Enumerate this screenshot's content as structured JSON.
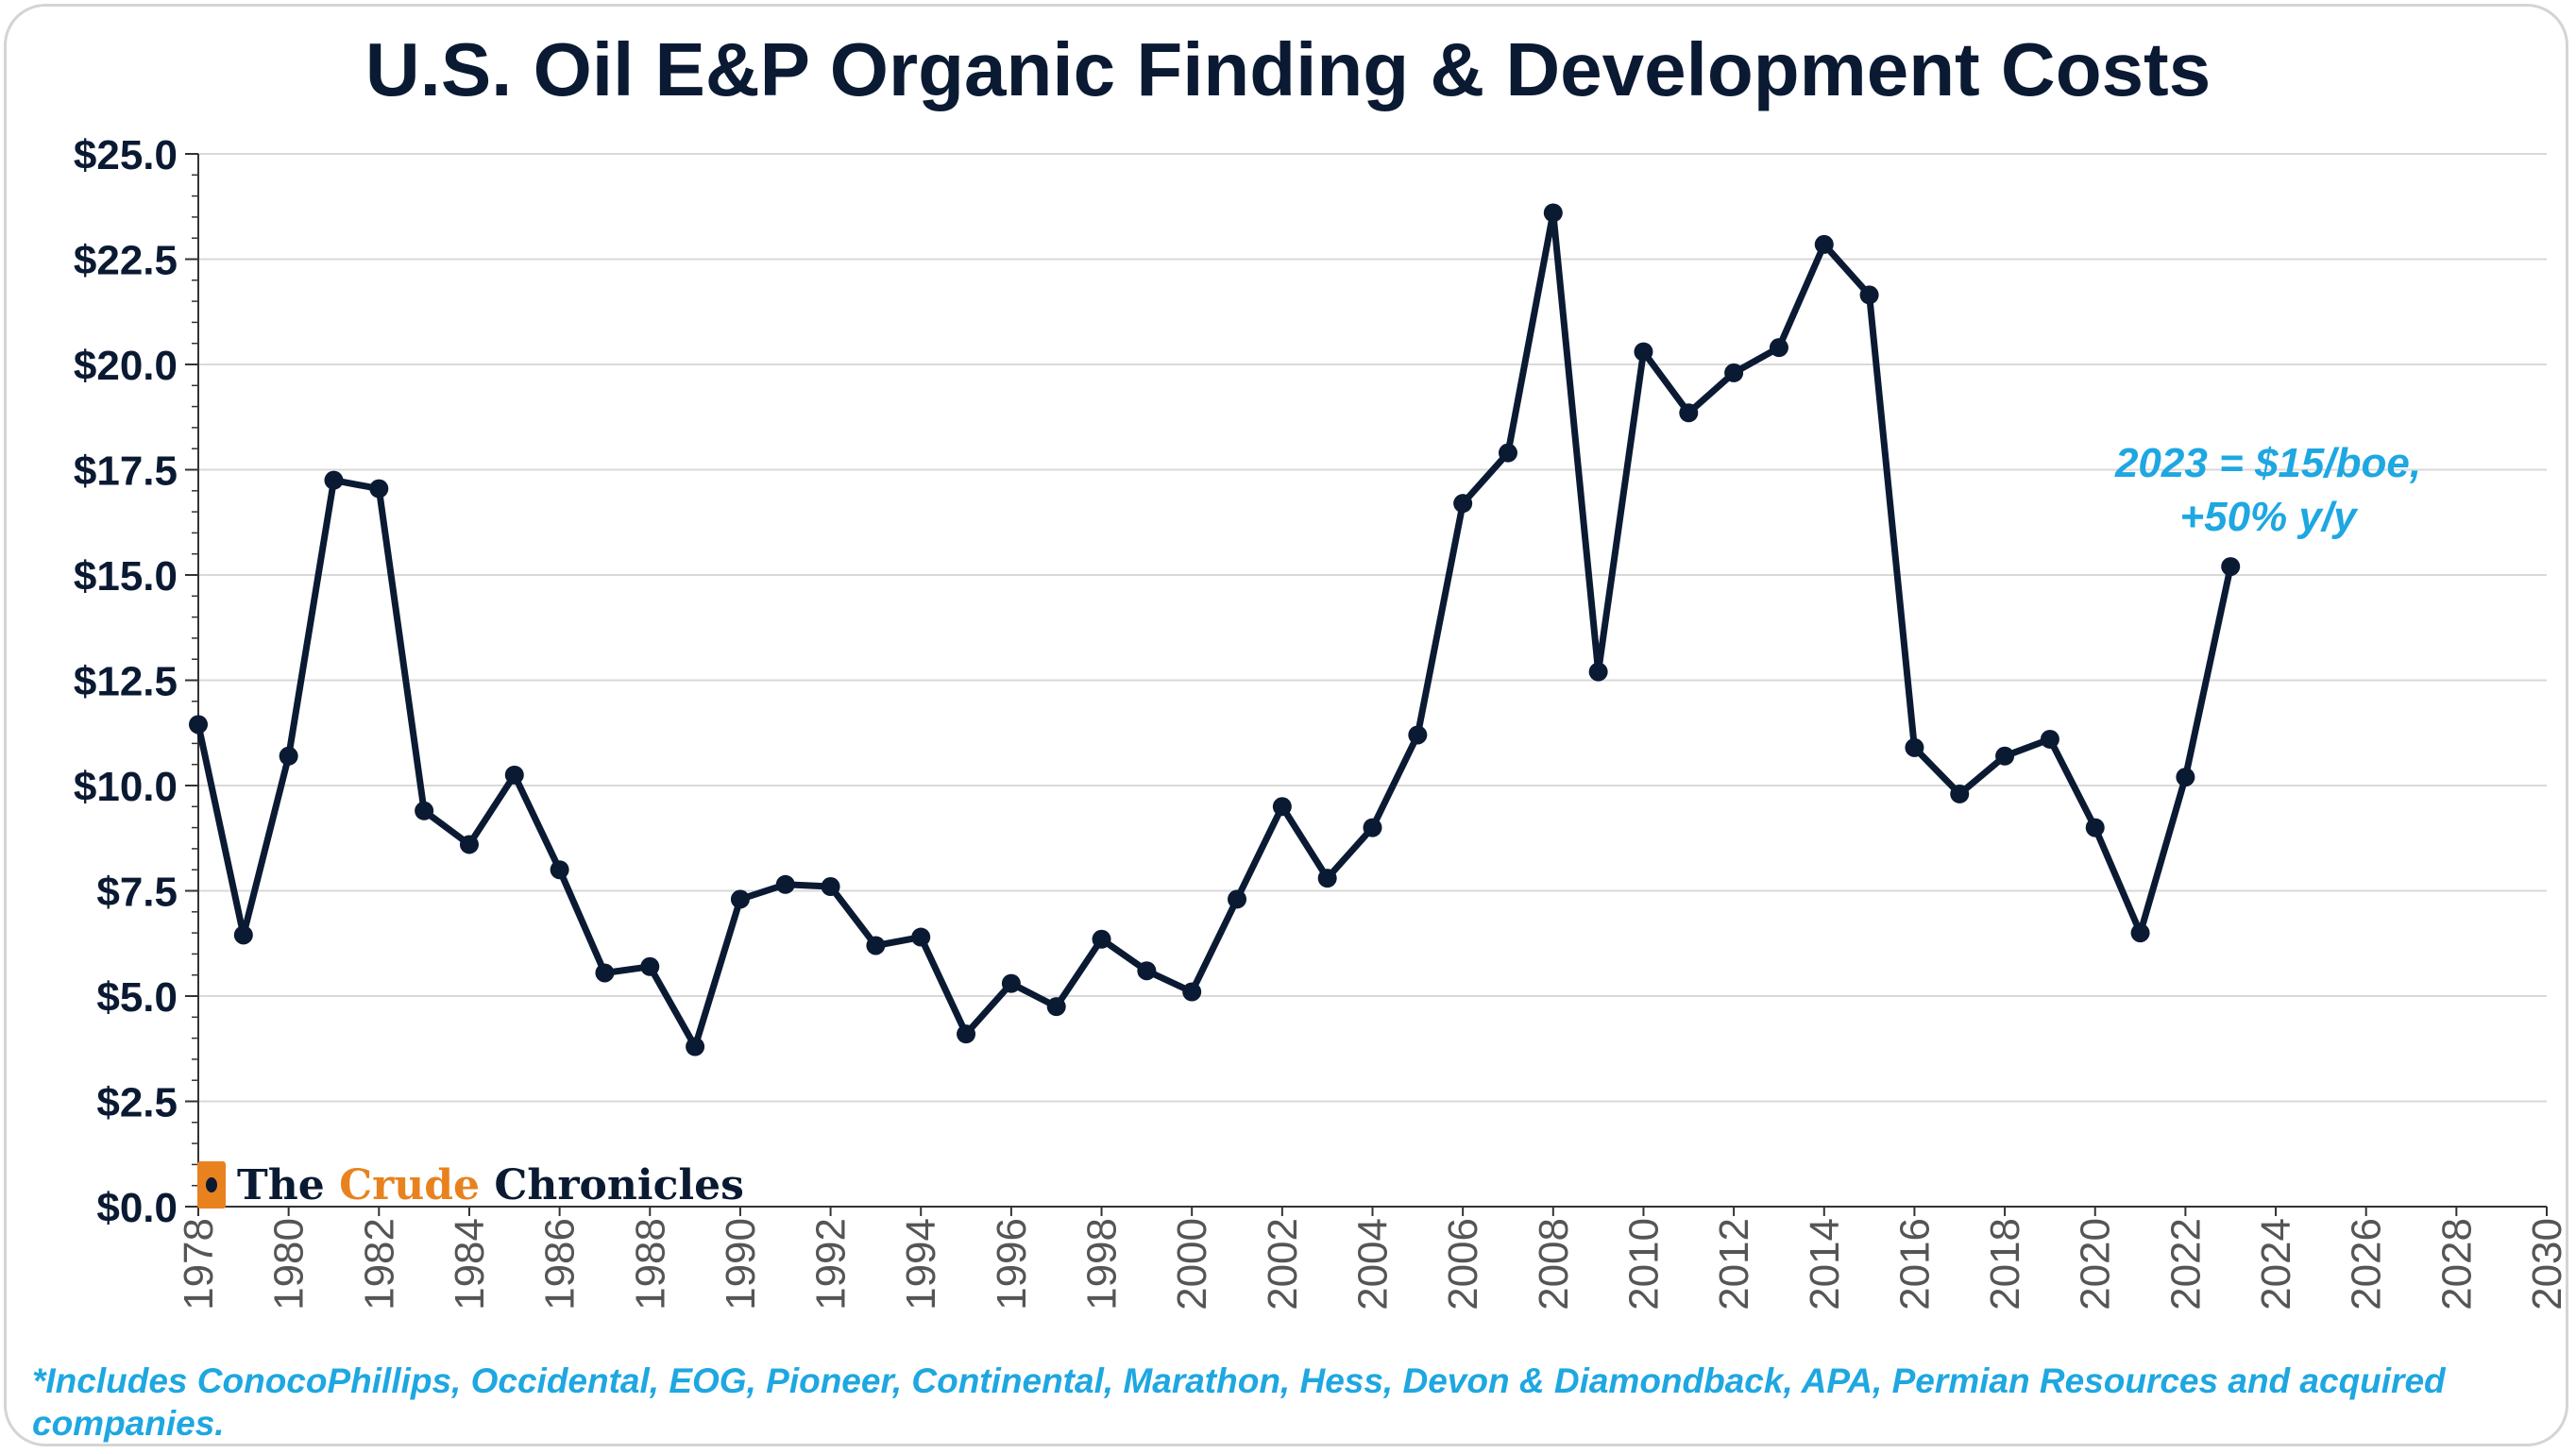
{
  "title": "U.S. Oil E&P Organic Finding & Development Costs",
  "annotation": {
    "line1": "2023 = $15/boe,",
    "line2": "+50% y/y"
  },
  "footnote": "*Includes ConocoPhillips, Occidental, EOG, Pioneer, Continental, Marathon, Hess, Devon & Diamondback, APA, Permian Resources and acquired companies.",
  "logo": {
    "word1": "The",
    "word2": "Crude",
    "word3": "Chronicles"
  },
  "colors": {
    "line": "#0b1a33",
    "annotation": "#1ea7e1",
    "logo_accent": "#e8821e",
    "grid": "#d9d9d9"
  },
  "chart_data": {
    "type": "line",
    "title": "U.S. Oil E&P Organic Finding & Development Costs",
    "xlabel": "",
    "ylabel": "",
    "xlim": [
      1978,
      2030
    ],
    "ylim": [
      0,
      25
    ],
    "grid": true,
    "x_tick_labels": [
      "1978",
      "1980",
      "1982",
      "1984",
      "1986",
      "1988",
      "1990",
      "1992",
      "1994",
      "1996",
      "1998",
      "2000",
      "2002",
      "2004",
      "2006",
      "2008",
      "2010",
      "2012",
      "2014",
      "2016",
      "2018",
      "2020",
      "2022",
      "2024",
      "2026",
      "2028",
      "2030"
    ],
    "y_tick_labels": [
      "$0.0",
      "$2.5",
      "$5.0",
      "$7.5",
      "$10.0",
      "$12.5",
      "$15.0",
      "$17.5",
      "$20.0",
      "$22.5",
      "$25.0"
    ],
    "x": [
      1978,
      1979,
      1980,
      1981,
      1982,
      1983,
      1984,
      1985,
      1986,
      1987,
      1988,
      1989,
      1990,
      1991,
      1992,
      1993,
      1994,
      1995,
      1996,
      1997,
      1998,
      1999,
      2000,
      2001,
      2002,
      2003,
      2004,
      2005,
      2006,
      2007,
      2008,
      2009,
      2010,
      2011,
      2012,
      2013,
      2014,
      2015,
      2016,
      2017,
      2018,
      2019,
      2020,
      2021,
      2022,
      2023
    ],
    "series": [
      {
        "values": [
          11.45,
          6.45,
          10.7,
          17.25,
          17.05,
          9.4,
          8.6,
          10.25,
          8.0,
          5.55,
          5.7,
          3.8,
          7.3,
          7.65,
          7.6,
          6.2,
          6.4,
          4.1,
          5.3,
          4.75,
          6.35,
          5.6,
          5.1,
          7.3,
          9.5,
          7.8,
          9.0,
          11.2,
          16.7,
          17.9,
          23.6,
          12.7,
          20.3,
          18.85,
          19.8,
          20.4,
          22.85,
          21.65,
          10.9,
          9.8,
          10.7,
          11.1,
          9.0,
          6.5,
          10.2,
          15.2
        ]
      }
    ]
  }
}
